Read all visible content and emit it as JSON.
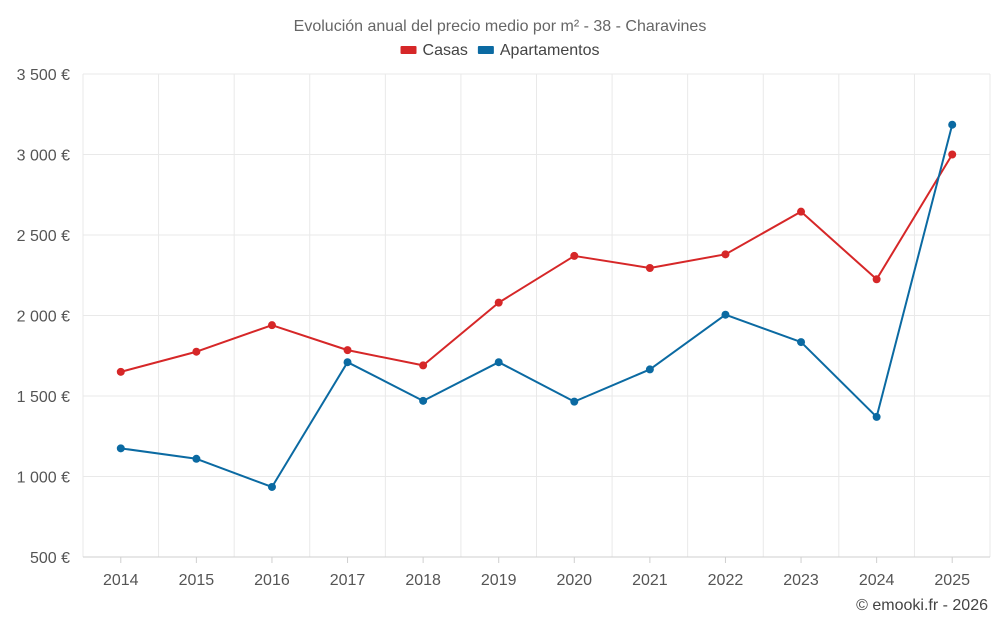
{
  "chart_data": {
    "type": "line",
    "title": "Evolución anual del precio medio por m² - 38 - Charavines",
    "categories": [
      "2014",
      "2015",
      "2016",
      "2017",
      "2018",
      "2019",
      "2020",
      "2021",
      "2022",
      "2023",
      "2024",
      "2025"
    ],
    "series": [
      {
        "name": "Casas",
        "color": "#d62728",
        "values": [
          1650,
          1775,
          1940,
          1785,
          1690,
          2080,
          2370,
          2295,
          2380,
          2645,
          2225,
          3000
        ]
      },
      {
        "name": "Apartamentos",
        "color": "#0b6aa2",
        "values": [
          1175,
          1110,
          935,
          1710,
          1470,
          1710,
          1465,
          1665,
          2005,
          1835,
          1370,
          3185
        ]
      }
    ],
    "ylim": [
      500,
      3500
    ],
    "yticks": [
      500,
      1000,
      1500,
      2000,
      2500,
      3000,
      3500
    ],
    "ytick_labels": [
      "500 €",
      "1 000 €",
      "1 500 €",
      "2 000 €",
      "2 500 €",
      "3 000 €",
      "3 500 €"
    ],
    "xlabel": "",
    "ylabel": "",
    "grid": true,
    "legend_position": "top-center"
  },
  "credit": "© emooki.fr - 2026"
}
